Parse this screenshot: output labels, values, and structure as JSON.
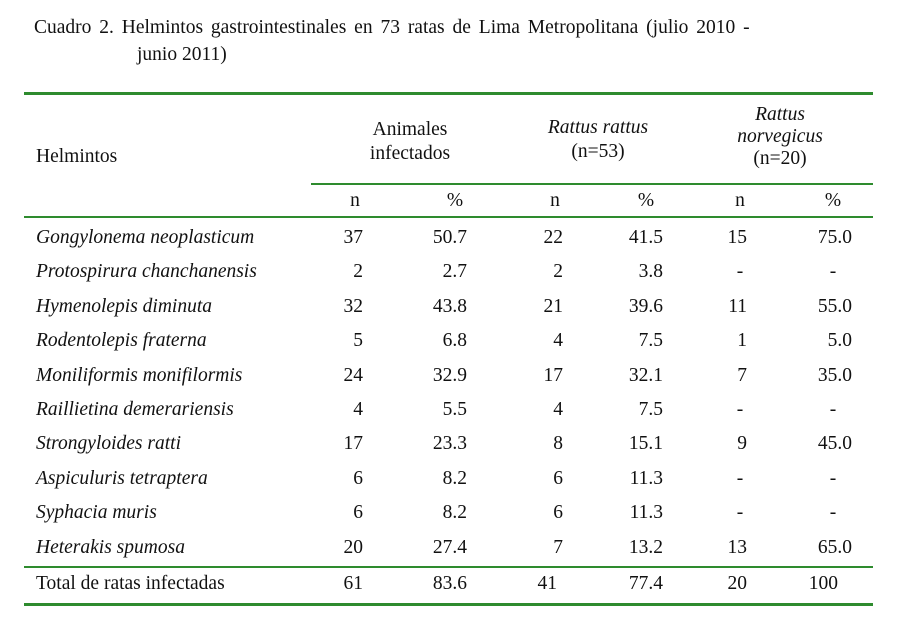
{
  "caption": {
    "line1": "Cuadro 2.  Helmintos gastrointestinales en 73 ratas de Lima Metropolitana (julio 2010 -",
    "line2": "junio 2011)"
  },
  "header": {
    "helmintos": "Helmintos",
    "col_group_1": [
      "Animales",
      "infectados"
    ],
    "col_group_2": [
      "Rattus rattus",
      "(n=53)"
    ],
    "col_group_3": [
      "Rattus",
      "norvegicus",
      "(n=20)"
    ],
    "sub": [
      "n",
      "%",
      "n",
      "%",
      "n",
      "%"
    ]
  },
  "rows": [
    {
      "name": "Gongylonema neoplasticum",
      "v": [
        "37",
        "50.7",
        "22",
        "41.5",
        "15",
        "75.0"
      ]
    },
    {
      "name": "Protospirura chanchanensis",
      "v": [
        "2",
        "2.7",
        "2",
        "3.8",
        "-",
        "-"
      ]
    },
    {
      "name": "Hymenolepis diminuta",
      "v": [
        "32",
        "43.8",
        "21",
        "39.6",
        "11",
        "55.0"
      ]
    },
    {
      "name": "Rodentolepis fraterna",
      "v": [
        "5",
        "6.8",
        "4",
        "7.5",
        "1",
        "5.0"
      ]
    },
    {
      "name": "Moniliformis monifilormis",
      "v": [
        "24",
        "32.9",
        "17",
        "32.1",
        "7",
        "35.0"
      ]
    },
    {
      "name": "Raillietina demerariensis",
      "v": [
        "4",
        "5.5",
        "4",
        "7.5",
        "-",
        "-"
      ]
    },
    {
      "name": "Strongyloides ratti",
      "v": [
        "17",
        "23.3",
        "8",
        "15.1",
        "9",
        "45.0"
      ]
    },
    {
      "name": "Aspiculuris tetraptera",
      "v": [
        "6",
        "8.2",
        "6",
        "11.3",
        "-",
        "-"
      ]
    },
    {
      "name": "Syphacia muris",
      "v": [
        "6",
        "8.2",
        "6",
        "11.3",
        "-",
        "-"
      ]
    },
    {
      "name": "Heterakis spumosa",
      "v": [
        "20",
        "27.4",
        "7",
        "13.2",
        "13",
        "65.0"
      ]
    }
  ],
  "total": {
    "name": "Total de ratas infectadas",
    "v": [
      "61",
      "83.6",
      "41",
      "77.4",
      "20",
      "100"
    ]
  },
  "colors": {
    "rule": "#2e8b2e",
    "text": "#111111"
  }
}
